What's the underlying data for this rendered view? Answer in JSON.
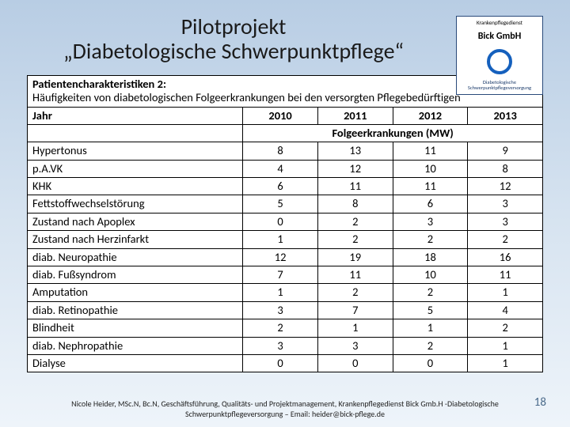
{
  "title_line1": "Pilotprojekt",
  "title_line2": "„Diabetologische Schwerpunktpflege“",
  "logo": {
    "top": "Krankenpflegedienst",
    "brand": "Bick GmbH",
    "bottom1": "Diabetologische",
    "bottom2": "Schwerpunktpflegeversorgung"
  },
  "table": {
    "header_title": "Patientencharakteristiken 2:",
    "header_sub": "Häufigkeiten von diabetologischen Folgeerkrankungen bei den versorgten Pflegebedürftigen",
    "year_label": "Jahr",
    "years": [
      "2010",
      "2011",
      "2012",
      "2013"
    ],
    "subheader": "Folgeerkrankungen (MW)",
    "rows": [
      {
        "label": "Hypertonus",
        "vals": [
          "8",
          "13",
          "11",
          "9"
        ]
      },
      {
        "label": "p.A.VK",
        "vals": [
          "4",
          "12",
          "10",
          "8"
        ]
      },
      {
        "label": "KHK",
        "vals": [
          "6",
          "11",
          "11",
          "12"
        ]
      },
      {
        "label": "Fettstoffwechselstörung",
        "vals": [
          "5",
          "8",
          "6",
          "3"
        ]
      },
      {
        "label": "Zustand nach Apoplex",
        "vals": [
          "0",
          "2",
          "3",
          "3"
        ]
      },
      {
        "label": "Zustand nach Herzinfarkt",
        "vals": [
          "1",
          "2",
          "2",
          "2"
        ]
      },
      {
        "label": "diab. Neuropathie",
        "vals": [
          "12",
          "19",
          "18",
          "16"
        ]
      },
      {
        "label": "diab. Fußsyndrom",
        "vals": [
          "7",
          "11",
          "10",
          "11"
        ]
      },
      {
        "label": "Amputation",
        "vals": [
          "1",
          "2",
          "2",
          "1"
        ]
      },
      {
        "label": "diab. Retinopathie",
        "vals": [
          "3",
          "7",
          "5",
          "4"
        ]
      },
      {
        "label": "Blindheit",
        "vals": [
          "2",
          "1",
          "1",
          "2"
        ]
      },
      {
        "label": "diab. Nephropathie",
        "vals": [
          "3",
          "3",
          "2",
          "1"
        ]
      },
      {
        "label": "Dialyse",
        "vals": [
          "0",
          "0",
          "0",
          "1"
        ]
      }
    ]
  },
  "footer": "Nicole Heider, MSc.N, Bc.N,   Geschäftsführung, Qualitäts- und Projektmanagement, Krankenpflegedienst Bick Gmb.H -Diabetologische Schwerpunktpflegeversorgung – Email: heider@bick-pflege.de",
  "page_number": "18",
  "colors": {
    "border": "#000000",
    "title": "#1a1a1a",
    "bg_top": "#b8cde4",
    "logo_ring": "#1560bd"
  }
}
